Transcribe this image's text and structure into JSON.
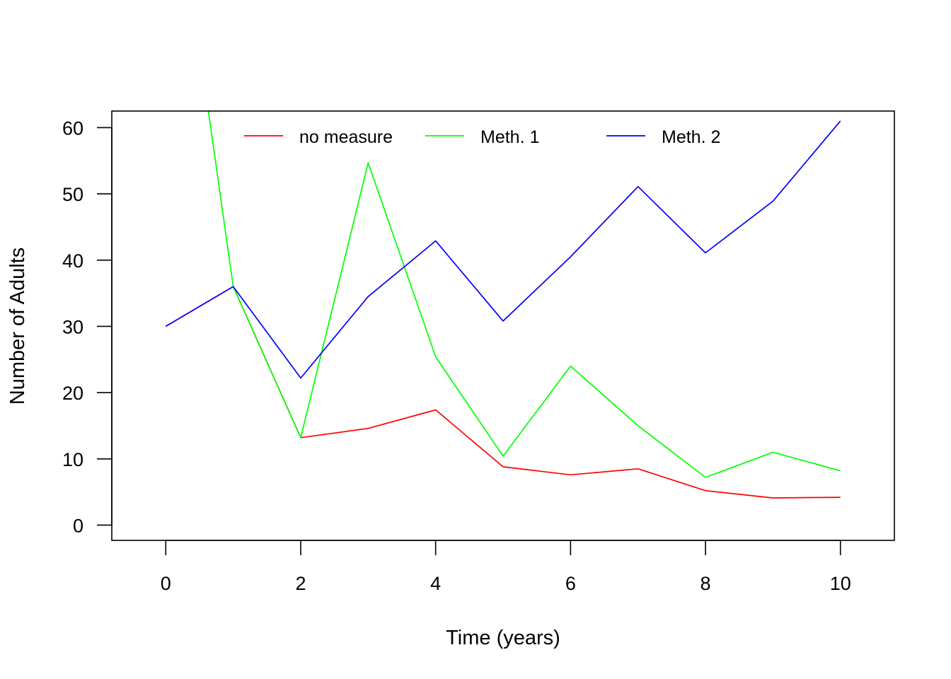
{
  "chart_data": {
    "type": "line",
    "title": "",
    "xlabel": "Time (years)",
    "ylabel": "Number of Adults",
    "xlim": [
      -0.8,
      10.8
    ],
    "ylim": [
      -2.3,
      62.5
    ],
    "xticks": [
      0,
      2,
      4,
      6,
      8,
      10
    ],
    "yticks": [
      0,
      10,
      20,
      30,
      40,
      50,
      60
    ],
    "grid": false,
    "legend_position": "top",
    "x": [
      0,
      1,
      2,
      3,
      4,
      5,
      6,
      7,
      8,
      9,
      10
    ],
    "series": [
      {
        "name": "no measure",
        "color": "#ff0000",
        "values": [
          30,
          36,
          13.2,
          14.6,
          17.4,
          8.8,
          7.6,
          8.5,
          5.2,
          4.1,
          4.2
        ]
      },
      {
        "name": "Meth. 1",
        "color": "#00ff00",
        "values": [
          108,
          36,
          13.2,
          54.7,
          25.4,
          10.4,
          24,
          15,
          7.2,
          11,
          8.2
        ]
      },
      {
        "name": "Meth. 2",
        "color": "#0000ff",
        "values": [
          30,
          36,
          22.2,
          34.5,
          42.9,
          30.8,
          40.5,
          51.1,
          41.1,
          48.9,
          61
        ]
      }
    ]
  }
}
